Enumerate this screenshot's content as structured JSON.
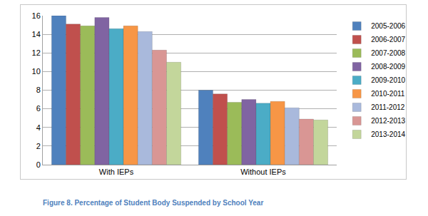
{
  "chart_data": {
    "type": "bar",
    "title": "Figure 8. Percentage of Student Body Suspended by School Year",
    "categories": [
      "With IEPs",
      "Without IEPs"
    ],
    "series": [
      {
        "name": "2005-2006",
        "color": "#4F81BD",
        "values": [
          16.0,
          8.0
        ]
      },
      {
        "name": "2006-2007",
        "color": "#C0504D",
        "values": [
          15.1,
          7.6
        ]
      },
      {
        "name": "2007-2008",
        "color": "#9BBB59",
        "values": [
          14.9,
          6.7
        ]
      },
      {
        "name": "2008-2009",
        "color": "#8064A2",
        "values": [
          15.8,
          7.0
        ]
      },
      {
        "name": "2009-2010",
        "color": "#4BACC6",
        "values": [
          14.6,
          6.6
        ]
      },
      {
        "name": "2010-2011",
        "color": "#F79646",
        "values": [
          14.9,
          6.8
        ]
      },
      {
        "name": "2011-2012",
        "color": "#A9B9DC",
        "values": [
          14.3,
          6.1
        ]
      },
      {
        "name": "2012-2013",
        "color": "#D99694",
        "values": [
          12.3,
          4.9
        ]
      },
      {
        "name": "2013-2014",
        "color": "#C3D69B",
        "values": [
          11.0,
          4.8
        ]
      }
    ],
    "ylim": [
      0,
      16
    ],
    "yticks": [
      0,
      2,
      4,
      6,
      8,
      10,
      12,
      14,
      16
    ],
    "grid": true,
    "legend": "right"
  }
}
